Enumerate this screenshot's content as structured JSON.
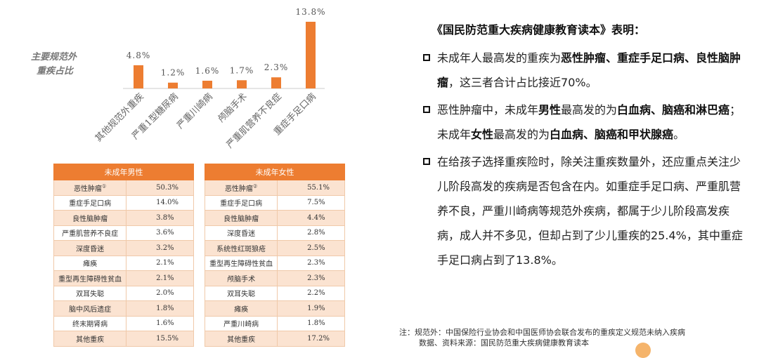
{
  "chart_data": {
    "type": "bar",
    "title": "",
    "side_label_line1": "主要规范外",
    "side_label_line2": "重疾占比",
    "categories": [
      "其他规范外重疾",
      "严重1型糖尿病",
      "严重川崎病",
      "颅脑手术",
      "严重肌营养不良症",
      "重症手足口病"
    ],
    "values": [
      4.8,
      1.2,
      1.6,
      1.7,
      2.3,
      13.8
    ],
    "value_labels": [
      "4.8%",
      "1.2%",
      "1.6%",
      "1.7%",
      "2.3%",
      "13.8%"
    ],
    "ylim": [
      0,
      13.8
    ],
    "bar_color": "#ed7d31",
    "grid": false
  },
  "male_table": {
    "header": "未成年男性",
    "rows": [
      {
        "name": "恶性肿瘤",
        "note": "①",
        "value": "50.3%"
      },
      {
        "name": "重症手足口病",
        "value": "14.0%"
      },
      {
        "name": "良性脑肿瘤",
        "value": "3.8%"
      },
      {
        "name": "严重肌营养不良症",
        "value": "3.6%"
      },
      {
        "name": "深度昏迷",
        "value": "3.2%"
      },
      {
        "name": "瘫痪",
        "value": "2.1%"
      },
      {
        "name": "重型再生障碍性贫血",
        "value": "2.1%"
      },
      {
        "name": "双耳失聪",
        "value": "2.0%"
      },
      {
        "name": "脑中风后遗症",
        "value": "1.8%"
      },
      {
        "name": "终末期肾病",
        "value": "1.6%"
      },
      {
        "name": "其他重疾",
        "value": "15.5%"
      }
    ]
  },
  "female_table": {
    "header": "未成年女性",
    "rows": [
      {
        "name": "恶性肿瘤",
        "note": "②",
        "value": "55.1%"
      },
      {
        "name": "重症手足口病",
        "value": "7.5%"
      },
      {
        "name": "良性脑肿瘤",
        "value": "4.4%"
      },
      {
        "name": "深度昏迷",
        "value": "2.8%"
      },
      {
        "name": "系统性红斑狼疮",
        "value": "2.5%"
      },
      {
        "name": "重型再生障碍性贫血",
        "value": "2.3%"
      },
      {
        "name": "颅脑手术",
        "value": "2.3%"
      },
      {
        "name": "双耳失聪",
        "value": "2.2%"
      },
      {
        "name": "瘫痪",
        "value": "1.9%"
      },
      {
        "name": "严重川崎病",
        "value": "1.8%"
      },
      {
        "name": "其他重疾",
        "value": "17.2%"
      }
    ]
  },
  "right_text": {
    "heading": "《国民防范重大疾病健康教育读本》表明：",
    "b1": [
      "未成年人最高发的重疾为",
      "恶性肿瘤、重症手足口病、良性脑肿瘤",
      "，这三者合计占比接近70%。"
    ],
    "b2": [
      "恶性肿瘤中，未成年",
      "男性",
      "最高发的为",
      "白血病、脑癌和淋巴癌",
      "；未成年",
      "女性",
      "最高发的为",
      "白血病、脑癌和甲状腺癌",
      "。"
    ],
    "b3": "在给孩子选择重疾险时，除关注重疾数量外，还应重点关注少儿阶段高发的疾病是否包含在内。如重症手足口病、严重肌营养不良，严重川崎病等规范外疾病，都属于少儿阶段高发疾病，成人并不多见，但却占到了少儿重疾的25.4%，其中重症手足口病占到了13.8%。"
  },
  "note": {
    "line1": "注：规范外：中国保险行业协会和中国医师协会联合发布的重疾定义规范未纳入疾病",
    "line2": "数据、资料来源：国民防范重大疾病健康教育读本"
  }
}
